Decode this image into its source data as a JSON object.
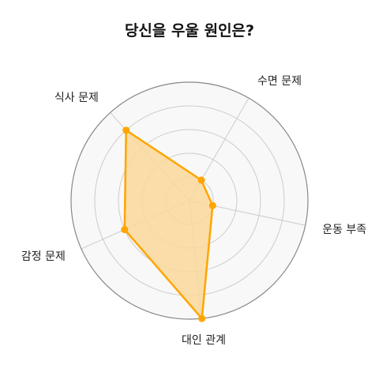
{
  "chart_data": {
    "type": "radar",
    "title": "당신을 우울 원인은?",
    "categories": [
      "수면 문제",
      "운동 부족",
      "대인 관계",
      "감정 문제",
      "식사 문제"
    ],
    "values": [
      1,
      1,
      5,
      3,
      4
    ],
    "rlim": [
      0,
      5
    ],
    "r_gridlines": [
      1,
      2,
      3,
      4,
      5
    ],
    "grid": true,
    "colors": {
      "line": "#FFA500",
      "fill": "#FAD89A",
      "background": "#F8F8F8",
      "grid": "#CCCCCC",
      "outer_ring": "#888888"
    }
  }
}
